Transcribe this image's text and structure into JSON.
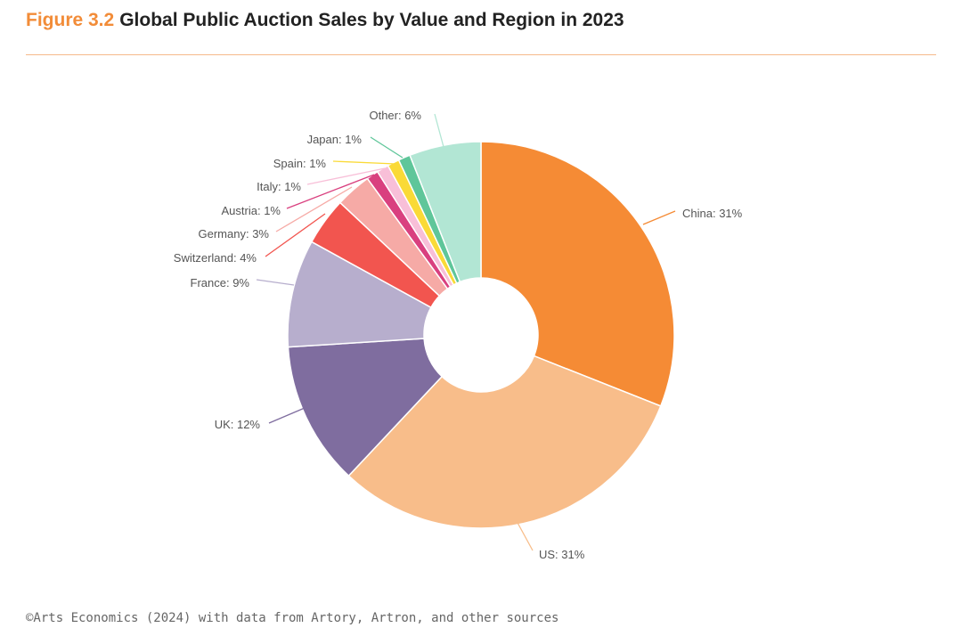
{
  "header": {
    "figure_number": "Figure 3.2",
    "title": "Global Public Auction Sales by Value and Region in 2023"
  },
  "source": "©Arts Economics (2024) with data from Artory, Artron, and other sources",
  "colors": {
    "accent": "#f28c38",
    "rule": "#f5b98a",
    "label_text": "#555555"
  },
  "chart_data": {
    "type": "pie",
    "variant": "donut",
    "title": "Global Public Auction Sales by Value and Region in 2023",
    "unit": "%",
    "slices": [
      {
        "name": "China",
        "value": 31,
        "label": "China: 31%",
        "color": "#f58b35"
      },
      {
        "name": "US",
        "value": 31,
        "label": "US: 31%",
        "color": "#f8bd8a"
      },
      {
        "name": "UK",
        "value": 12,
        "label": "UK: 12%",
        "color": "#7f6d9f"
      },
      {
        "name": "France",
        "value": 9,
        "label": "France: 9%",
        "color": "#b7aecd"
      },
      {
        "name": "Switzerland",
        "value": 4,
        "label": "Switzerland: 4%",
        "color": "#f2554f"
      },
      {
        "name": "Germany",
        "value": 3,
        "label": "Germany: 3%",
        "color": "#f6aaa6"
      },
      {
        "name": "Austria",
        "value": 1,
        "label": "Austria: 1%",
        "color": "#d9407f"
      },
      {
        "name": "Italy",
        "value": 1,
        "label": "Italy: 1%",
        "color": "#f8bfd8"
      },
      {
        "name": "Spain",
        "value": 1,
        "label": "Spain: 1%",
        "color": "#fada37"
      },
      {
        "name": "Japan",
        "value": 1,
        "label": "Japan: 1%",
        "color": "#5fc69a"
      },
      {
        "name": "Other",
        "value": 6,
        "label": "Other: 6%",
        "color": "#b2e6d4"
      }
    ]
  }
}
